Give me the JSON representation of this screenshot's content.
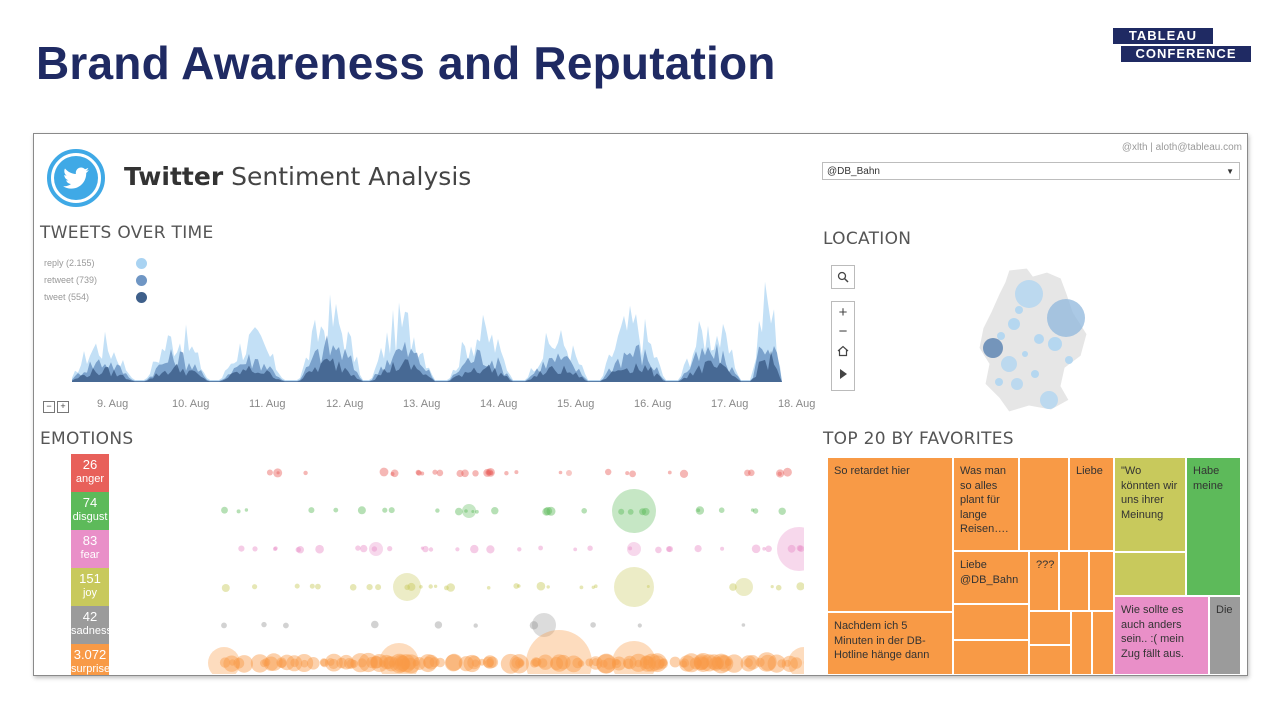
{
  "slide": {
    "title": "Brand Awareness and Reputation",
    "logo_line1": "TABLEAU",
    "logo_line2": "CONFERENCE"
  },
  "dashboard": {
    "credit": "@xlth | aloth@tableau.com",
    "title_bold": "Twitter",
    "title_rest": "Sentiment Analysis",
    "account_select": "@DB_Bahn",
    "sections": {
      "tweets_over_time": "TWEETS OVER TIME",
      "location": "LOCATION",
      "emotions": "EMOTIONS",
      "top20": "TOP 20 BY FAVORITES"
    },
    "tweet_legend": [
      {
        "label": "reply (2.155)",
        "color": "#a9d3f2"
      },
      {
        "label": "retweet (739)",
        "color": "#6f96c4"
      },
      {
        "label": "tweet (554)",
        "color": "#3e5f8a"
      }
    ],
    "zoom_out": "−",
    "zoom_in": "+",
    "x_axis_labels": [
      "9. Aug",
      "10. Aug",
      "11. Aug",
      "12. Aug",
      "13. Aug",
      "14. Aug",
      "15. Aug",
      "16. Aug",
      "17. Aug",
      "18. Aug"
    ],
    "map_tools": {
      "search": "search-icon",
      "zoom_in": "+",
      "zoom_out": "−",
      "home": "home-icon",
      "play": "play-icon"
    },
    "emotions": [
      {
        "count": "26",
        "label": "anger",
        "color": "#e8605a"
      },
      {
        "count": "74",
        "label": "disgust",
        "color": "#5dba5a"
      },
      {
        "count": "83",
        "label": "fear",
        "color": "#e98fc8"
      },
      {
        "count": "151",
        "label": "joy",
        "color": "#c8c95c"
      },
      {
        "count": "42",
        "label": "sadness",
        "color": "#9b9b9b"
      },
      {
        "count": "3.072",
        "label": "surprise",
        "color": "#f89a46"
      }
    ],
    "treemap": [
      {
        "text": "So retardet hier",
        "color": "#f89a46"
      },
      {
        "text": "Was man so alles plant für lange Reisen….",
        "color": "#f89a46"
      },
      {
        "text": "",
        "color": "#f89a46"
      },
      {
        "text": "Liebe",
        "color": "#f89a46"
      },
      {
        "text": "\"Wo könnten wir uns ihrer Meinung",
        "color": "#c8c95c"
      },
      {
        "text": "Habe meine",
        "color": "#5dba5a"
      },
      {
        "text": "Liebe @DB_Bahn",
        "color": "#f89a46"
      },
      {
        "text": "???",
        "color": "#f89a46"
      },
      {
        "text": "Nachdem ich 5 Minuten in der DB-Hotline hänge dann",
        "color": "#f89a46"
      },
      {
        "text": "Wie sollte es auch anders sein.. :( mein Zug fällt aus.",
        "color": "#e98fc8"
      },
      {
        "text": "Die",
        "color": "#9b9b9b"
      }
    ]
  }
}
